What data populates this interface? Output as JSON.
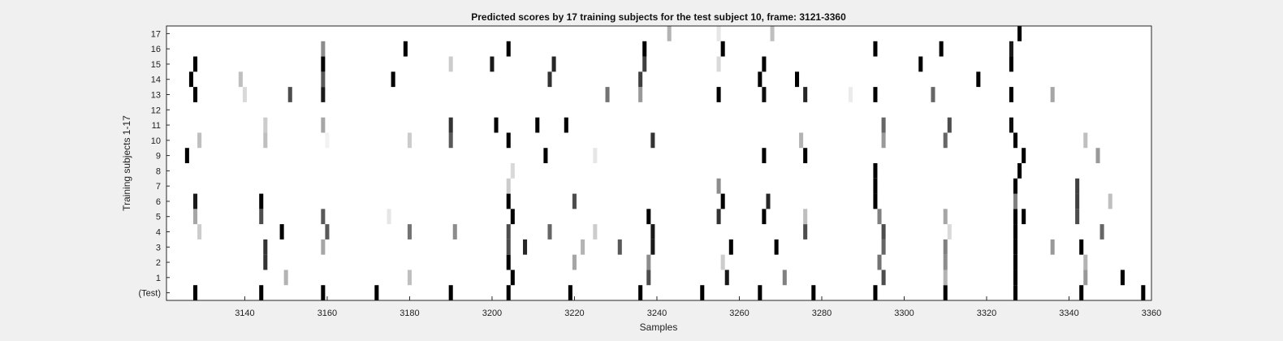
{
  "chart_data": {
    "type": "heatmap",
    "title": "Predicted scores by 17 training subjects for the test subject 10, frame: 3121-3360",
    "xlabel": "Samples",
    "ylabel": "Training subjects 1-17",
    "xlim": [
      3121,
      3360
    ],
    "x_ticks": [
      3140,
      3160,
      3180,
      3200,
      3220,
      3240,
      3260,
      3280,
      3300,
      3320,
      3340,
      3360
    ],
    "y_ticks": [
      "(Test)",
      "1",
      "2",
      "3",
      "4",
      "5",
      "6",
      "7",
      "8",
      "9",
      "10",
      "11",
      "12",
      "13",
      "14",
      "15",
      "16",
      "17"
    ],
    "colormap": "gray (white = 0, black = 1)",
    "rows": [
      {
        "label": "(Test)",
        "x": [
          3128,
          3144,
          3159,
          3172,
          3190,
          3204,
          3219,
          3236,
          3251,
          3265,
          3278,
          3293,
          3310,
          3327,
          3343,
          3358
        ],
        "v": [
          1,
          1,
          1,
          1,
          1,
          1,
          1,
          1,
          1,
          1,
          1,
          1,
          1,
          1,
          1,
          1
        ]
      },
      {
        "label": "1",
        "x": [
          3150,
          3180,
          3205,
          3238,
          3257,
          3271,
          3295,
          3310,
          3327,
          3344,
          3353
        ],
        "v": [
          0.3,
          0.25,
          1,
          0.7,
          0.9,
          0.5,
          0.7,
          0.3,
          1,
          0.4,
          1
        ]
      },
      {
        "label": "2",
        "x": [
          3145,
          3204,
          3220,
          3238,
          3256,
          3294,
          3310,
          3327,
          3344
        ],
        "v": [
          0.8,
          1,
          0.35,
          0.45,
          0.2,
          0.55,
          0.45,
          1,
          0.3
        ]
      },
      {
        "label": "3",
        "x": [
          3145,
          3159,
          3204,
          3208,
          3222,
          3231,
          3239,
          3258,
          3269,
          3295,
          3310,
          3327,
          3336,
          3343
        ],
        "v": [
          0.8,
          0.35,
          0.7,
          0.85,
          0.3,
          0.65,
          0.9,
          1,
          1,
          0.6,
          0.5,
          1,
          0.4,
          1
        ]
      },
      {
        "label": "4",
        "x": [
          3129,
          3149,
          3160,
          3180,
          3191,
          3204,
          3214,
          3225,
          3239,
          3276,
          3295,
          3311,
          3327,
          3348
        ],
        "v": [
          0.2,
          1,
          0.65,
          0.55,
          0.45,
          0.7,
          0.6,
          0.2,
          0.9,
          0.7,
          0.7,
          0.15,
          1,
          0.6
        ]
      },
      {
        "label": "5",
        "x": [
          3128,
          3144,
          3159,
          3175,
          3205,
          3238,
          3255,
          3266,
          3276,
          3294,
          3310,
          3327,
          3329,
          3342
        ],
        "v": [
          0.35,
          0.7,
          0.65,
          0.1,
          1,
          1,
          0.8,
          1,
          0.25,
          0.5,
          0.35,
          1,
          1,
          0.7
        ]
      },
      {
        "label": "6",
        "x": [
          3128,
          3144,
          3204,
          3220,
          3256,
          3267,
          3293,
          3327,
          3342,
          3350
        ],
        "v": [
          0.9,
          1,
          1,
          0.7,
          1,
          0.85,
          1,
          0.5,
          0.75,
          0.25
        ]
      },
      {
        "label": "7",
        "x": [
          3204,
          3255,
          3293,
          3327,
          3342
        ],
        "v": [
          0.2,
          0.45,
          1,
          1,
          0.75
        ]
      },
      {
        "label": "8",
        "x": [
          3205,
          3293,
          3328
        ],
        "v": [
          0.15,
          1,
          1
        ]
      },
      {
        "label": "9",
        "x": [
          3126,
          3213,
          3225,
          3266,
          3276,
          3329,
          3347
        ],
        "v": [
          1,
          1,
          0.1,
          1,
          1,
          1,
          0.4
        ]
      },
      {
        "label": "10",
        "x": [
          3129,
          3145,
          3160,
          3180,
          3190,
          3204,
          3239,
          3275,
          3295,
          3310,
          3327,
          3344
        ],
        "v": [
          0.25,
          0.25,
          0.05,
          0.2,
          0.65,
          1,
          0.8,
          0.3,
          0.4,
          0.6,
          1,
          0.25
        ]
      },
      {
        "label": "11",
        "x": [
          3145,
          3159,
          3190,
          3201,
          3211,
          3218,
          3295,
          3311,
          3326
        ],
        "v": [
          0.2,
          0.35,
          0.8,
          1,
          1,
          1,
          0.6,
          0.7,
          0.95
        ]
      },
      {
        "label": "12",
        "x": [],
        "v": []
      },
      {
        "label": "13",
        "x": [
          3128,
          3140,
          3151,
          3159,
          3228,
          3236,
          3255,
          3266,
          3276,
          3287,
          3293,
          3307,
          3326,
          3336
        ],
        "v": [
          1,
          0.15,
          0.7,
          0.9,
          0.55,
          0.4,
          1,
          0.95,
          0.85,
          0.08,
          1,
          0.6,
          1,
          0.35
        ]
      },
      {
        "label": "14",
        "x": [
          3127,
          3139,
          3159,
          3176,
          3214,
          3236,
          3265,
          3274,
          3318
        ],
        "v": [
          1,
          0.25,
          0.65,
          1,
          0.8,
          0.75,
          1,
          1,
          1
        ]
      },
      {
        "label": "15",
        "x": [
          3128,
          3159,
          3190,
          3200,
          3215,
          3237,
          3255,
          3266,
          3304,
          3326
        ],
        "v": [
          1,
          1,
          0.2,
          0.9,
          0.85,
          0.75,
          0.15,
          1,
          1,
          1
        ]
      },
      {
        "label": "16",
        "x": [
          3159,
          3179,
          3204,
          3237,
          3256,
          3293,
          3309,
          3326
        ],
        "v": [
          0.45,
          1,
          1,
          1,
          1,
          1,
          1,
          0.9
        ]
      },
      {
        "label": "17",
        "x": [
          3243,
          3255,
          3268,
          3328
        ],
        "v": [
          0.3,
          0.1,
          0.25,
          1
        ]
      }
    ]
  }
}
